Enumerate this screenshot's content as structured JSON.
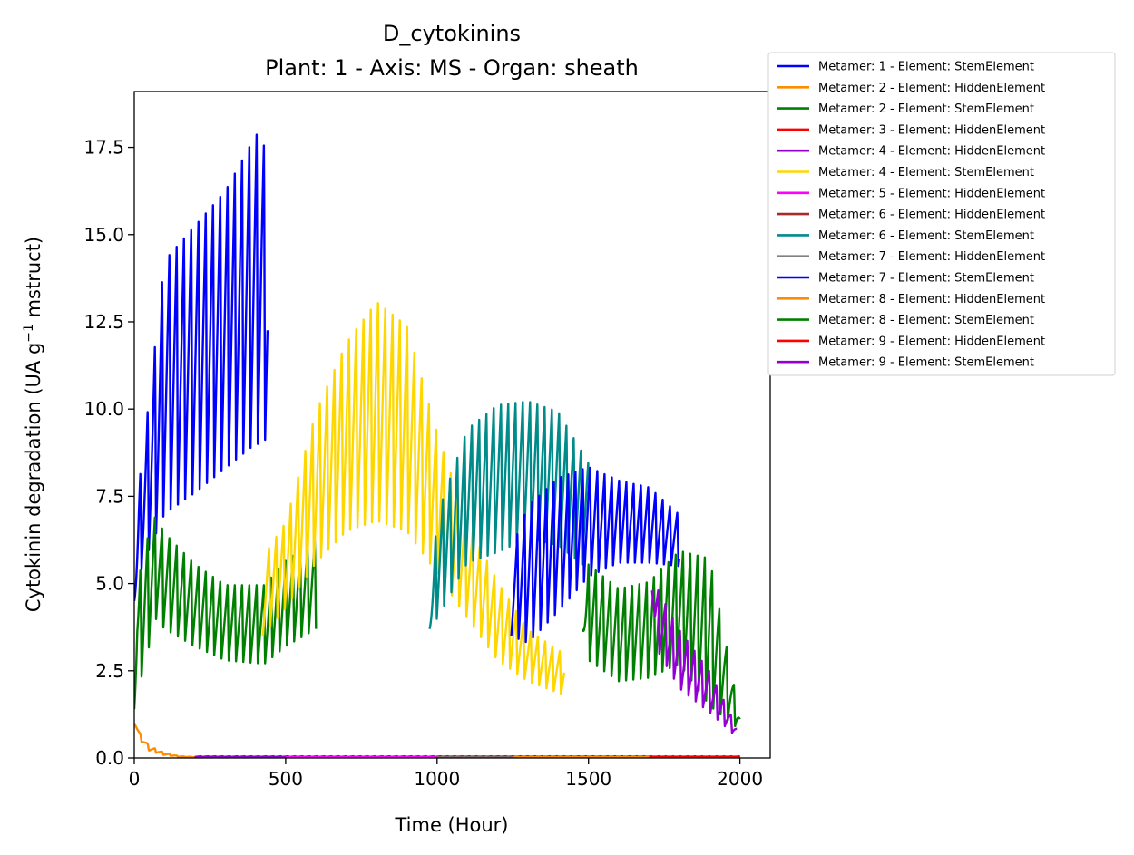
{
  "chart_data": {
    "type": "line",
    "title": "D_cytokinins",
    "subtitle": "Plant: 1 - Axis: MS - Organ: sheath",
    "xlabel": "Time (Hour)",
    "ylabel": "Cytokinin degradation (UA g",
    "ylabel_sup": "−1",
    "ylabel_tail": " mstruct)",
    "xlim": [
      0,
      2100
    ],
    "ylim": [
      0,
      19.1
    ],
    "xticks": [
      0,
      500,
      1000,
      1500,
      2000
    ],
    "xtick_labels": [
      "0",
      "500",
      "1000",
      "1500",
      "2000"
    ],
    "yticks": [
      0,
      2.5,
      5,
      7.5,
      10,
      12.5,
      15,
      17.5
    ],
    "ytick_labels": [
      "0.0",
      "2.5",
      "5.0",
      "7.5",
      "10.0",
      "12.5",
      "15.0",
      "17.5"
    ],
    "grid": false,
    "legend_position": "outside-right",
    "series": [
      {
        "name": "Metamer: 1 - Element: StemElement",
        "color": "#0000ff",
        "x": [
          0,
          15,
          25,
          100,
          200,
          300,
          400,
          420,
          440
        ],
        "low": [
          4.5,
          4.5,
          5.5,
          7.0,
          7.6,
          8.3,
          9.0,
          9.0,
          9.2
        ],
        "high": [
          5.5,
          7.9,
          8.5,
          14.4,
          15.4,
          16.4,
          18.0,
          18.2,
          17.0
        ]
      },
      {
        "name": "Metamer: 2 - Element: HiddenElement",
        "color": "#ff8c00",
        "x": [
          0,
          20,
          50,
          100,
          150,
          200,
          1990
        ],
        "low": [
          1.0,
          0.5,
          0.2,
          0.08,
          0.03,
          0.02,
          0.02
        ],
        "high": [
          1.1,
          0.7,
          0.35,
          0.15,
          0.05,
          0.03,
          0.03
        ]
      },
      {
        "name": "Metamer: 2 - Element: StemElement",
        "color": "#008000",
        "x": [
          0,
          10,
          25,
          70,
          100,
          200,
          300,
          430,
          500,
          600
        ],
        "low": [
          1.4,
          2.8,
          2.3,
          4.0,
          3.7,
          3.2,
          2.8,
          2.7,
          3.2,
          3.7
        ],
        "high": [
          1.6,
          4.5,
          5.9,
          7.0,
          6.5,
          5.6,
          5.0,
          5.0,
          5.7,
          6.3
        ]
      },
      {
        "name": "Metamer: 3 - Element: HiddenElement",
        "color": "#ff0000",
        "x": [
          200,
          2000
        ],
        "low": [
          0.03,
          0.03
        ],
        "high": [
          0.05,
          0.05
        ]
      },
      {
        "name": "Metamer: 4 - Element: HiddenElement",
        "color": "#9400d3",
        "x": [
          200,
          1990
        ],
        "low": [
          0.02,
          0.02
        ],
        "high": [
          0.04,
          0.04
        ]
      },
      {
        "name": "Metamer: 4 - Element: StemElement",
        "color": "#ffd700",
        "x": [
          425,
          500,
          600,
          700,
          800,
          900,
          1000,
          1100,
          1200,
          1300,
          1420
        ],
        "low": [
          3.5,
          4.3,
          5.6,
          6.5,
          6.8,
          6.5,
          5.3,
          4.0,
          2.8,
          2.2,
          1.8
        ],
        "high": [
          5.8,
          6.8,
          10.0,
          12.0,
          13.2,
          12.5,
          9.4,
          6.8,
          5.1,
          3.7,
          3.0
        ]
      },
      {
        "name": "Metamer: 5 - Element: HiddenElement",
        "color": "#ff00ff",
        "x": [
          500,
          1000
        ],
        "low": [
          0.02,
          0.02
        ],
        "high": [
          0.03,
          0.03
        ]
      },
      {
        "name": "Metamer: 6 - Element: HiddenElement",
        "color": "#a52a2a",
        "x": [
          1000,
          2000
        ],
        "low": [
          0.02,
          0.02
        ],
        "high": [
          0.04,
          0.04
        ]
      },
      {
        "name": "Metamer: 6 - Element: StemElement",
        "color": "#008b8b",
        "x": [
          975,
          1000,
          1100,
          1200,
          1300,
          1400,
          1500
        ],
        "low": [
          3.7,
          4.0,
          5.6,
          5.9,
          6.3,
          6.1,
          5.4
        ],
        "high": [
          4.0,
          7.0,
          9.5,
          10.2,
          10.3,
          10.0,
          8.5
        ]
      },
      {
        "name": "Metamer: 7 - Element: HiddenElement",
        "color": "#808080",
        "x": [
          1000,
          2000
        ],
        "low": [
          0.01,
          0.01
        ],
        "high": [
          0.02,
          0.02
        ]
      },
      {
        "name": "Metamer: 7 - Element: StemElement",
        "color": "#0000ff",
        "x": [
          1245,
          1300,
          1400,
          1500,
          1600,
          1700,
          1800
        ],
        "low": [
          3.5,
          3.3,
          4.2,
          5.2,
          5.6,
          5.6,
          5.5
        ],
        "high": [
          6.0,
          7.3,
          8.1,
          8.4,
          8.0,
          7.8,
          7.0
        ]
      },
      {
        "name": "Metamer: 8 - Element: HiddenElement",
        "color": "#ff8c00",
        "x": [
          1250,
          2000
        ],
        "low": [
          0.02,
          0.02
        ],
        "high": [
          0.03,
          0.03
        ]
      },
      {
        "name": "Metamer: 8 - Element: StemElement",
        "color": "#008000",
        "x": [
          1480,
          1500,
          1600,
          1700,
          1800,
          1900,
          2000
        ],
        "low": [
          3.7,
          2.8,
          2.2,
          2.3,
          2.7,
          1.5,
          0.8
        ],
        "high": [
          3.8,
          5.6,
          4.9,
          5.1,
          6.0,
          5.8,
          1.2
        ]
      },
      {
        "name": "Metamer: 9 - Element: HiddenElement",
        "color": "#ff0000",
        "x": [
          1700,
          2000
        ],
        "low": [
          0.02,
          0.02
        ],
        "high": [
          0.03,
          0.03
        ]
      },
      {
        "name": "Metamer: 9 - Element: StemElement",
        "color": "#9400d3",
        "x": [
          1710,
          1720,
          1800,
          1900,
          1990
        ],
        "low": [
          4.8,
          3.2,
          2.0,
          1.3,
          0.6
        ],
        "high": [
          6.1,
          5.0,
          3.7,
          2.5,
          0.9
        ]
      }
    ]
  }
}
